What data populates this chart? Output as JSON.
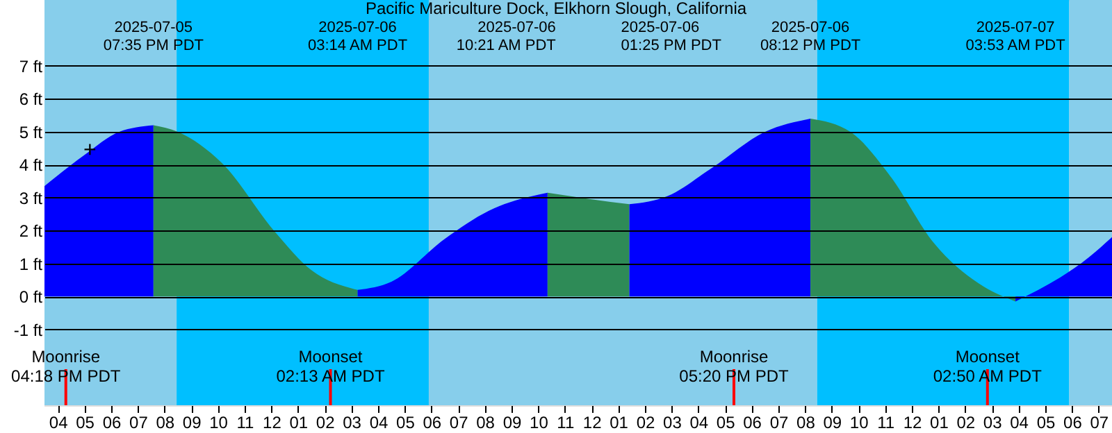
{
  "chart_data": {
    "type": "area",
    "title": "Pacific Mariculture Dock, Elkhorn Slough, California",
    "xlim": [
      "2025-07-05T15:30",
      "2025-07-07T07:30"
    ],
    "ylim": [
      -3.3,
      9
    ],
    "xticks": [
      {
        "value": "2025-07-05T16:00",
        "label": "04"
      },
      {
        "value": "2025-07-05T17:00",
        "label": "05"
      },
      {
        "value": "2025-07-05T18:00",
        "label": "06"
      },
      {
        "value": "2025-07-05T19:00",
        "label": "07"
      },
      {
        "value": "2025-07-05T20:00",
        "label": "08"
      },
      {
        "value": "2025-07-05T21:00",
        "label": "09"
      },
      {
        "value": "2025-07-05T22:00",
        "label": "10"
      },
      {
        "value": "2025-07-05T23:00",
        "label": "11"
      },
      {
        "value": "2025-07-06T00:00",
        "label": "12"
      },
      {
        "value": "2025-07-06T01:00",
        "label": "01"
      },
      {
        "value": "2025-07-06T02:00",
        "label": "02"
      },
      {
        "value": "2025-07-06T03:00",
        "label": "03"
      },
      {
        "value": "2025-07-06T04:00",
        "label": "04"
      },
      {
        "value": "2025-07-06T05:00",
        "label": "05"
      },
      {
        "value": "2025-07-06T06:00",
        "label": "06"
      },
      {
        "value": "2025-07-06T07:00",
        "label": "07"
      },
      {
        "value": "2025-07-06T08:00",
        "label": "08"
      },
      {
        "value": "2025-07-06T09:00",
        "label": "09"
      },
      {
        "value": "2025-07-06T10:00",
        "label": "10"
      },
      {
        "value": "2025-07-06T11:00",
        "label": "11"
      },
      {
        "value": "2025-07-06T12:00",
        "label": "12"
      },
      {
        "value": "2025-07-06T13:00",
        "label": "01"
      },
      {
        "value": "2025-07-06T14:00",
        "label": "02"
      },
      {
        "value": "2025-07-06T15:00",
        "label": "03"
      },
      {
        "value": "2025-07-06T16:00",
        "label": "04"
      },
      {
        "value": "2025-07-06T17:00",
        "label": "05"
      },
      {
        "value": "2025-07-06T18:00",
        "label": "06"
      },
      {
        "value": "2025-07-06T19:00",
        "label": "07"
      },
      {
        "value": "2025-07-06T20:00",
        "label": "08"
      },
      {
        "value": "2025-07-06T21:00",
        "label": "09"
      },
      {
        "value": "2025-07-06T22:00",
        "label": "10"
      },
      {
        "value": "2025-07-06T23:00",
        "label": "11"
      },
      {
        "value": "2025-07-07T00:00",
        "label": "12"
      },
      {
        "value": "2025-07-07T01:00",
        "label": "01"
      },
      {
        "value": "2025-07-07T02:00",
        "label": "02"
      },
      {
        "value": "2025-07-07T03:00",
        "label": "03"
      },
      {
        "value": "2025-07-07T04:00",
        "label": "04"
      },
      {
        "value": "2025-07-07T05:00",
        "label": "05"
      },
      {
        "value": "2025-07-07T06:00",
        "label": "06"
      },
      {
        "value": "2025-07-07T07:00",
        "label": "07"
      }
    ],
    "yticks": [
      {
        "value": -1,
        "label": "-1 ft"
      },
      {
        "value": 0,
        "label": "0 ft"
      },
      {
        "value": 1,
        "label": "1 ft"
      },
      {
        "value": 2,
        "label": "2 ft"
      },
      {
        "value": 3,
        "label": "3 ft"
      },
      {
        "value": 4,
        "label": "4 ft"
      },
      {
        "value": 5,
        "label": "5 ft"
      },
      {
        "value": 6,
        "label": "6 ft"
      },
      {
        "value": 7,
        "label": "7 ft"
      }
    ],
    "grid": "y",
    "series": [
      {
        "color": "#0000ff",
        "x": [
          "2025-07-05T15:30",
          "2025-07-05T17:00",
          "2025-07-05T18:18",
          "2025-07-05T19:35"
        ],
        "values": [
          3.35,
          4.3,
          5.0,
          5.2
        ]
      },
      {
        "color": "#2e8b57",
        "x": [
          "2025-07-05T19:35",
          "2025-07-05T20:30",
          "2025-07-05T22:09",
          "2025-07-06T00:09",
          "2025-07-06T01:30",
          "2025-07-06T03:14"
        ],
        "values": [
          5.2,
          5.0,
          4.05,
          1.95,
          0.8,
          0.2
        ]
      },
      {
        "color": "#0000ff",
        "x": [
          "2025-07-06T03:14",
          "2025-07-06T04:30",
          "2025-07-06T06:30",
          "2025-07-06T08:09",
          "2025-07-06T10:21"
        ],
        "values": [
          0.2,
          0.45,
          1.75,
          2.6,
          3.15
        ]
      },
      {
        "color": "#2e8b57",
        "x": [
          "2025-07-06T10:21",
          "2025-07-06T12:00",
          "2025-07-06T13:25"
        ],
        "values": [
          3.15,
          2.95,
          2.8
        ]
      },
      {
        "color": "#0000ff",
        "x": [
          "2025-07-06T13:25",
          "2025-07-06T14:51",
          "2025-07-06T16:30",
          "2025-07-06T18:30",
          "2025-07-06T20:12"
        ],
        "values": [
          2.8,
          3.05,
          3.9,
          5.0,
          5.4
        ]
      },
      {
        "color": "#2e8b57",
        "x": [
          "2025-07-06T20:12",
          "2025-07-06T21:42",
          "2025-07-06T23:09",
          "2025-07-07T00:51",
          "2025-07-07T02:30",
          "2025-07-07T03:53"
        ],
        "values": [
          5.4,
          5.0,
          3.7,
          1.6,
          0.4,
          -0.15
        ]
      },
      {
        "color": "#0000ff",
        "x": [
          "2025-07-07T03:53",
          "2025-07-07T06:39",
          "2025-07-07T07:30"
        ],
        "values": [
          -0.15,
          1.2,
          1.8
        ]
      }
    ],
    "bands": [
      {
        "axis": "x",
        "from": "2025-07-05T15:30",
        "to": "2025-07-05T20:27",
        "color": "#87ceeb"
      },
      {
        "axis": "x",
        "from": "2025-07-05T20:27",
        "to": "2025-07-06T05:54",
        "color": "#00bfff"
      },
      {
        "axis": "x",
        "from": "2025-07-06T05:54",
        "to": "2025-07-06T20:27",
        "color": "#87ceeb"
      },
      {
        "axis": "x",
        "from": "2025-07-06T20:27",
        "to": "2025-07-07T05:54",
        "color": "#00bfff"
      },
      {
        "axis": "x",
        "from": "2025-07-07T05:54",
        "to": "2025-07-07T07:30",
        "color": "#87ceeb"
      }
    ],
    "ref_lines": [
      {
        "axis": "x",
        "value": "2025-07-05T16:18",
        "label": "Moonrise\n04:18 PM PDT",
        "color": "#ff0000"
      },
      {
        "axis": "x",
        "value": "2025-07-06T02:13",
        "label": "Moonset\n02:13 AM PDT",
        "color": "#ff0000"
      },
      {
        "axis": "x",
        "value": "2025-07-06T17:20",
        "label": "Moonrise\n05:20 PM PDT",
        "color": "#ff0000"
      },
      {
        "axis": "x",
        "value": "2025-07-07T02:50",
        "label": "Moonset\n02:50 AM PDT",
        "color": "#ff0000"
      }
    ],
    "annotations": [
      "2025-07-05\n07:35 PM PDT",
      "2025-07-06\n03:14 AM PDT",
      "2025-07-06\n10:21 AM PDT",
      "2025-07-06\n01:25 PM PDT",
      "2025-07-06\n08:12 PM PDT",
      "2025-07-07\n03:53 AM PDT",
      {
        "text": "+",
        "x": "2025-07-05T17:12",
        "y": 4.45
      }
    ]
  }
}
